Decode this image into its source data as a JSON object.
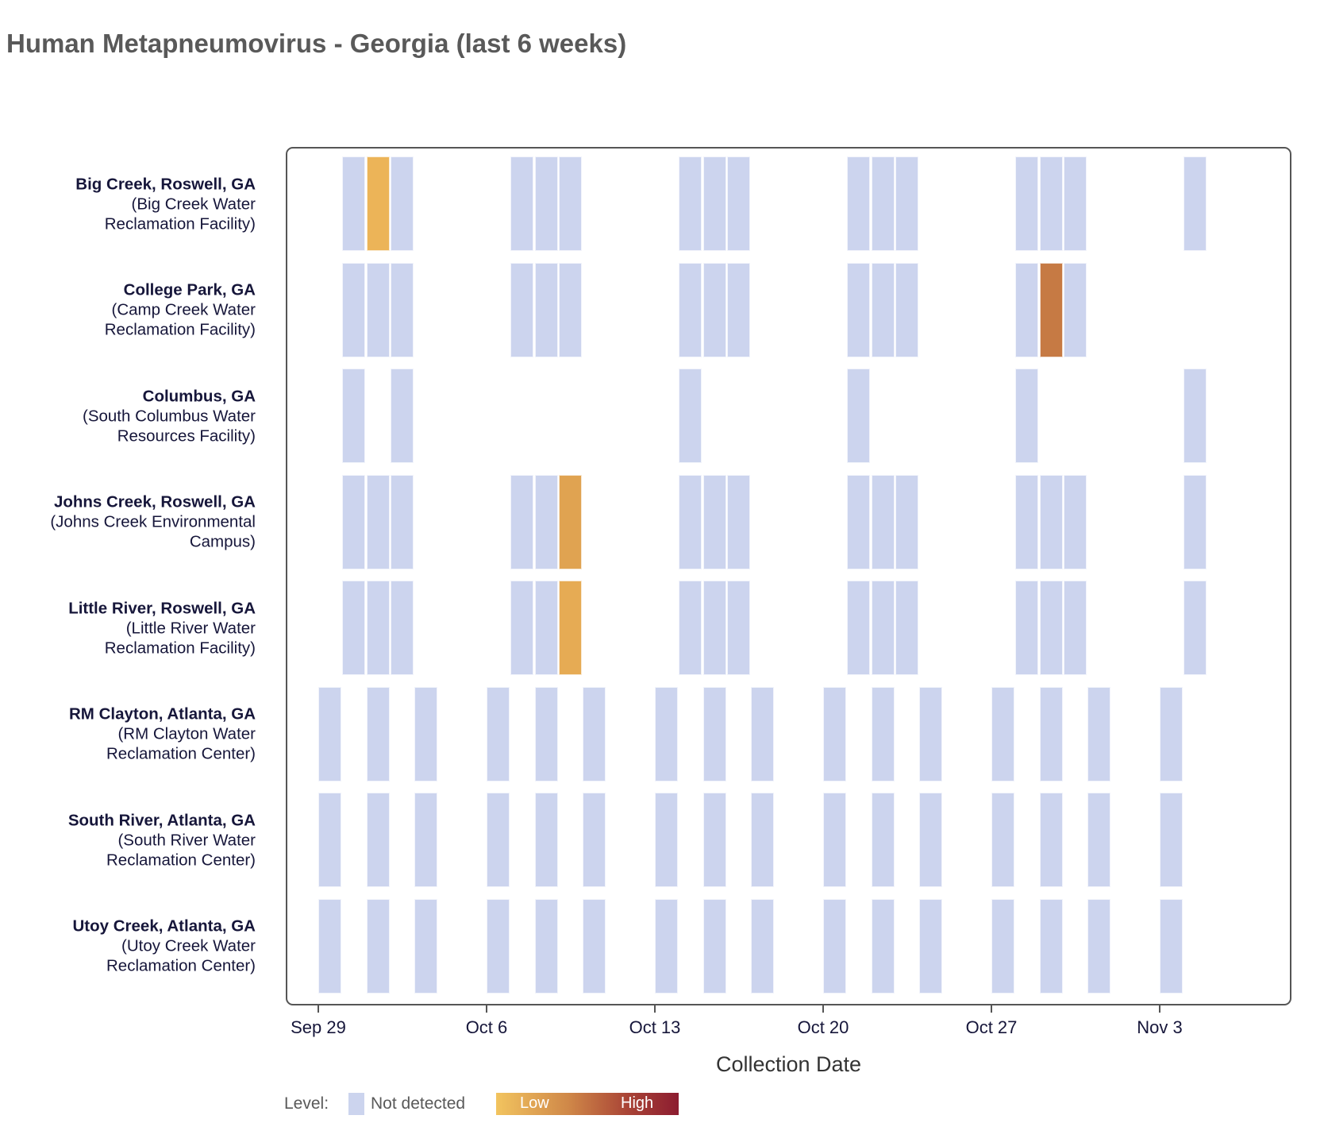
{
  "title": "Human Metapneumovirus - Georgia (last 6 weeks)",
  "colors": {
    "background": "#ffffff",
    "not_detected": "#ccd4ee",
    "frame": "#555555",
    "title_text": "#595959",
    "axis_text": "#16163a",
    "axis_title_text": "#333333",
    "legend_text": "#595959",
    "legend_gradient": [
      "#f2c45f",
      "#cf8748",
      "#a94436",
      "#8c1c30"
    ]
  },
  "chart_data": {
    "type": "heatmap",
    "title": "Human Metapneumovirus - Georgia (last 6 weeks)",
    "xlabel": "Collection Date",
    "ylabel": "",
    "grid": false,
    "legend": {
      "position": "bottom",
      "label": "Level:",
      "not_detected_label": "Not detected",
      "low_label": "Low",
      "high_label": "High"
    },
    "x_axis_note": "day = offset in days from Sep 29",
    "x_ticks": [
      {
        "label": "Sep 29",
        "day": 0
      },
      {
        "label": "Oct 6",
        "day": 7
      },
      {
        "label": "Oct 13",
        "day": 14
      },
      {
        "label": "Oct 20",
        "day": 21
      },
      {
        "label": "Oct 27",
        "day": 28
      },
      {
        "label": "Nov 3",
        "day": 35
      }
    ],
    "sample_format": [
      "day_offset",
      "date",
      "level",
      "color_if_detected"
    ],
    "rows": [
      {
        "name": "Big Creek, Roswell, GA",
        "facility": "(Big Creek Water Reclamation Facility)",
        "samples": [
          [
            1,
            "Sep 30",
            "not_detected"
          ],
          [
            2,
            "Oct 1",
            "detected_low",
            "#ecb458"
          ],
          [
            3,
            "Oct 2",
            "not_detected"
          ],
          [
            8,
            "Oct 7",
            "not_detected"
          ],
          [
            9,
            "Oct 8",
            "not_detected"
          ],
          [
            10,
            "Oct 9",
            "not_detected"
          ],
          [
            15,
            "Oct 14",
            "not_detected"
          ],
          [
            16,
            "Oct 15",
            "not_detected"
          ],
          [
            17,
            "Oct 16",
            "not_detected"
          ],
          [
            22,
            "Oct 21",
            "not_detected"
          ],
          [
            23,
            "Oct 22",
            "not_detected"
          ],
          [
            24,
            "Oct 23",
            "not_detected"
          ],
          [
            29,
            "Oct 28",
            "not_detected"
          ],
          [
            30,
            "Oct 29",
            "not_detected"
          ],
          [
            31,
            "Oct 30",
            "not_detected"
          ],
          [
            36,
            "Nov 4",
            "not_detected"
          ]
        ]
      },
      {
        "name": "College Park, GA",
        "facility": "(Camp Creek Water Reclamation Facility)",
        "samples": [
          [
            1,
            "Sep 30",
            "not_detected"
          ],
          [
            2,
            "Oct 1",
            "not_detected"
          ],
          [
            3,
            "Oct 2",
            "not_detected"
          ],
          [
            8,
            "Oct 7",
            "not_detected"
          ],
          [
            9,
            "Oct 8",
            "not_detected"
          ],
          [
            10,
            "Oct 9",
            "not_detected"
          ],
          [
            15,
            "Oct 14",
            "not_detected"
          ],
          [
            16,
            "Oct 15",
            "not_detected"
          ],
          [
            17,
            "Oct 16",
            "not_detected"
          ],
          [
            22,
            "Oct 21",
            "not_detected"
          ],
          [
            23,
            "Oct 22",
            "not_detected"
          ],
          [
            24,
            "Oct 23",
            "not_detected"
          ],
          [
            29,
            "Oct 28",
            "not_detected"
          ],
          [
            30,
            "Oct 29",
            "detected_moderate",
            "#c67a44"
          ],
          [
            31,
            "Oct 30",
            "not_detected"
          ]
        ]
      },
      {
        "name": "Columbus, GA",
        "facility": "(South Columbus Water Resources Facility)",
        "samples": [
          [
            1,
            "Sep 30",
            "not_detected"
          ],
          [
            3,
            "Oct 2",
            "not_detected"
          ],
          [
            15,
            "Oct 14",
            "not_detected"
          ],
          [
            22,
            "Oct 21",
            "not_detected"
          ],
          [
            29,
            "Oct 28",
            "not_detected"
          ],
          [
            36,
            "Nov 4",
            "not_detected"
          ]
        ]
      },
      {
        "name": "Johns Creek, Roswell, GA",
        "facility": "(Johns Creek Environmental Campus)",
        "samples": [
          [
            1,
            "Sep 30",
            "not_detected"
          ],
          [
            2,
            "Oct 1",
            "not_detected"
          ],
          [
            3,
            "Oct 2",
            "not_detected"
          ],
          [
            8,
            "Oct 7",
            "not_detected"
          ],
          [
            9,
            "Oct 8",
            "not_detected"
          ],
          [
            10,
            "Oct 9",
            "detected_low",
            "#e0a351"
          ],
          [
            15,
            "Oct 14",
            "not_detected"
          ],
          [
            16,
            "Oct 15",
            "not_detected"
          ],
          [
            17,
            "Oct 16",
            "not_detected"
          ],
          [
            22,
            "Oct 21",
            "not_detected"
          ],
          [
            23,
            "Oct 22",
            "not_detected"
          ],
          [
            24,
            "Oct 23",
            "not_detected"
          ],
          [
            29,
            "Oct 28",
            "not_detected"
          ],
          [
            30,
            "Oct 29",
            "not_detected"
          ],
          [
            31,
            "Oct 30",
            "not_detected"
          ],
          [
            36,
            "Nov 4",
            "not_detected"
          ]
        ]
      },
      {
        "name": "Little River, Roswell, GA",
        "facility": "(Little River Water Reclamation Facility)",
        "samples": [
          [
            1,
            "Sep 30",
            "not_detected"
          ],
          [
            2,
            "Oct 1",
            "not_detected"
          ],
          [
            3,
            "Oct 2",
            "not_detected"
          ],
          [
            8,
            "Oct 7",
            "not_detected"
          ],
          [
            9,
            "Oct 8",
            "not_detected"
          ],
          [
            10,
            "Oct 9",
            "detected_low",
            "#e6ab54"
          ],
          [
            15,
            "Oct 14",
            "not_detected"
          ],
          [
            16,
            "Oct 15",
            "not_detected"
          ],
          [
            17,
            "Oct 16",
            "not_detected"
          ],
          [
            22,
            "Oct 21",
            "not_detected"
          ],
          [
            23,
            "Oct 22",
            "not_detected"
          ],
          [
            24,
            "Oct 23",
            "not_detected"
          ],
          [
            29,
            "Oct 28",
            "not_detected"
          ],
          [
            30,
            "Oct 29",
            "not_detected"
          ],
          [
            31,
            "Oct 30",
            "not_detected"
          ],
          [
            36,
            "Nov 4",
            "not_detected"
          ]
        ]
      },
      {
        "name": "RM Clayton, Atlanta, GA",
        "facility": "(RM Clayton Water Reclamation Center)",
        "samples": [
          [
            0,
            "Sep 29",
            "not_detected"
          ],
          [
            2,
            "Oct 1",
            "not_detected"
          ],
          [
            4,
            "Oct 3",
            "not_detected"
          ],
          [
            7,
            "Oct 6",
            "not_detected"
          ],
          [
            9,
            "Oct 8",
            "not_detected"
          ],
          [
            11,
            "Oct 10",
            "not_detected"
          ],
          [
            14,
            "Oct 13",
            "not_detected"
          ],
          [
            16,
            "Oct 15",
            "not_detected"
          ],
          [
            18,
            "Oct 17",
            "not_detected"
          ],
          [
            21,
            "Oct 20",
            "not_detected"
          ],
          [
            23,
            "Oct 22",
            "not_detected"
          ],
          [
            25,
            "Oct 24",
            "not_detected"
          ],
          [
            28,
            "Oct 27",
            "not_detected"
          ],
          [
            30,
            "Oct 29",
            "not_detected"
          ],
          [
            32,
            "Oct 31",
            "not_detected"
          ],
          [
            35,
            "Nov 3",
            "not_detected"
          ]
        ]
      },
      {
        "name": "South River, Atlanta, GA",
        "facility": "(South River Water Reclamation Center)",
        "samples": [
          [
            0,
            "Sep 29",
            "not_detected"
          ],
          [
            2,
            "Oct 1",
            "not_detected"
          ],
          [
            4,
            "Oct 3",
            "not_detected"
          ],
          [
            7,
            "Oct 6",
            "not_detected"
          ],
          [
            9,
            "Oct 8",
            "not_detected"
          ],
          [
            11,
            "Oct 10",
            "not_detected"
          ],
          [
            14,
            "Oct 13",
            "not_detected"
          ],
          [
            16,
            "Oct 15",
            "not_detected"
          ],
          [
            18,
            "Oct 17",
            "not_detected"
          ],
          [
            21,
            "Oct 20",
            "not_detected"
          ],
          [
            23,
            "Oct 22",
            "not_detected"
          ],
          [
            25,
            "Oct 24",
            "not_detected"
          ],
          [
            28,
            "Oct 27",
            "not_detected"
          ],
          [
            30,
            "Oct 29",
            "not_detected"
          ],
          [
            32,
            "Oct 31",
            "not_detected"
          ],
          [
            35,
            "Nov 3",
            "not_detected"
          ]
        ]
      },
      {
        "name": "Utoy Creek, Atlanta, GA",
        "facility": "(Utoy Creek Water Reclamation Center)",
        "samples": [
          [
            0,
            "Sep 29",
            "not_detected"
          ],
          [
            2,
            "Oct 1",
            "not_detected"
          ],
          [
            4,
            "Oct 3",
            "not_detected"
          ],
          [
            7,
            "Oct 6",
            "not_detected"
          ],
          [
            9,
            "Oct 8",
            "not_detected"
          ],
          [
            11,
            "Oct 10",
            "not_detected"
          ],
          [
            14,
            "Oct 13",
            "not_detected"
          ],
          [
            16,
            "Oct 15",
            "not_detected"
          ],
          [
            18,
            "Oct 17",
            "not_detected"
          ],
          [
            21,
            "Oct 20",
            "not_detected"
          ],
          [
            23,
            "Oct 22",
            "not_detected"
          ],
          [
            25,
            "Oct 24",
            "not_detected"
          ],
          [
            28,
            "Oct 27",
            "not_detected"
          ],
          [
            30,
            "Oct 29",
            "not_detected"
          ],
          [
            32,
            "Oct 31",
            "not_detected"
          ],
          [
            35,
            "Nov 3",
            "not_detected"
          ]
        ]
      }
    ]
  }
}
